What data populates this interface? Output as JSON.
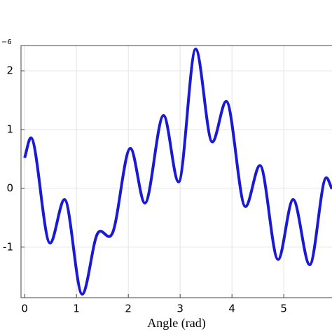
{
  "chart_data": {
    "type": "line",
    "x_label": "Angle (rad)",
    "exponent_label": "−6",
    "x": [
      0,
      0.12,
      0.49,
      0.77,
      1.11,
      1.4,
      1.7,
      2.04,
      2.32,
      2.68,
      2.97,
      3.3,
      3.62,
      3.89,
      4.26,
      4.54,
      4.89,
      5.18,
      5.5,
      5.82,
      5.93
    ],
    "series": [
      {
        "color": "#1a1ad6",
        "values": [
          0.52,
          0.86,
          -0.93,
          -0.19,
          -1.8,
          -0.78,
          -0.75,
          0.68,
          -0.25,
          1.24,
          0.11,
          2.37,
          0.79,
          1.48,
          -0.31,
          0.39,
          -1.21,
          -0.19,
          -1.3,
          0.18,
          -0.01
        ]
      }
    ],
    "xlim": [
      -0.07,
      5.93
    ],
    "ylim": [
      -1.86,
      2.43
    ],
    "xticks": [
      0,
      1,
      2,
      3,
      4,
      5
    ],
    "yticks": [
      -1,
      0,
      1,
      2
    ],
    "grid": true
  }
}
